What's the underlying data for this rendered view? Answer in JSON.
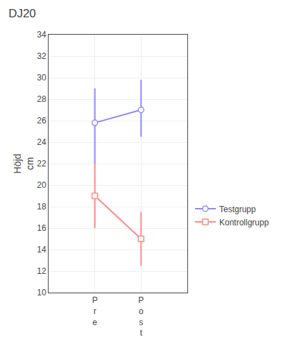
{
  "chart_data": {
    "type": "line",
    "title": "DJ20",
    "ylabel": "Höjd\ncm",
    "categories": [
      "P\nr\ne",
      "P\no\ns\nt"
    ],
    "series": [
      {
        "name": "Testgrupp",
        "color": "#8888FF",
        "marker": "circle",
        "values": [
          25.8,
          27.0
        ],
        "errors_lower": [
          3.8,
          2.5
        ],
        "errors_upper": [
          3.2,
          2.8
        ]
      },
      {
        "name": "Kontrollgrupp",
        "color": "#FF8888",
        "marker": "square",
        "values": [
          19.0,
          15.0
        ],
        "errors_lower": [
          3.0,
          2.5
        ],
        "errors_upper": [
          3.0,
          2.5
        ]
      }
    ],
    "ylim": [
      10,
      34
    ],
    "yticks": [
      10,
      12,
      14,
      16,
      18,
      20,
      22,
      24,
      26,
      28,
      30,
      32,
      34
    ],
    "grid": true,
    "legend": "right"
  }
}
